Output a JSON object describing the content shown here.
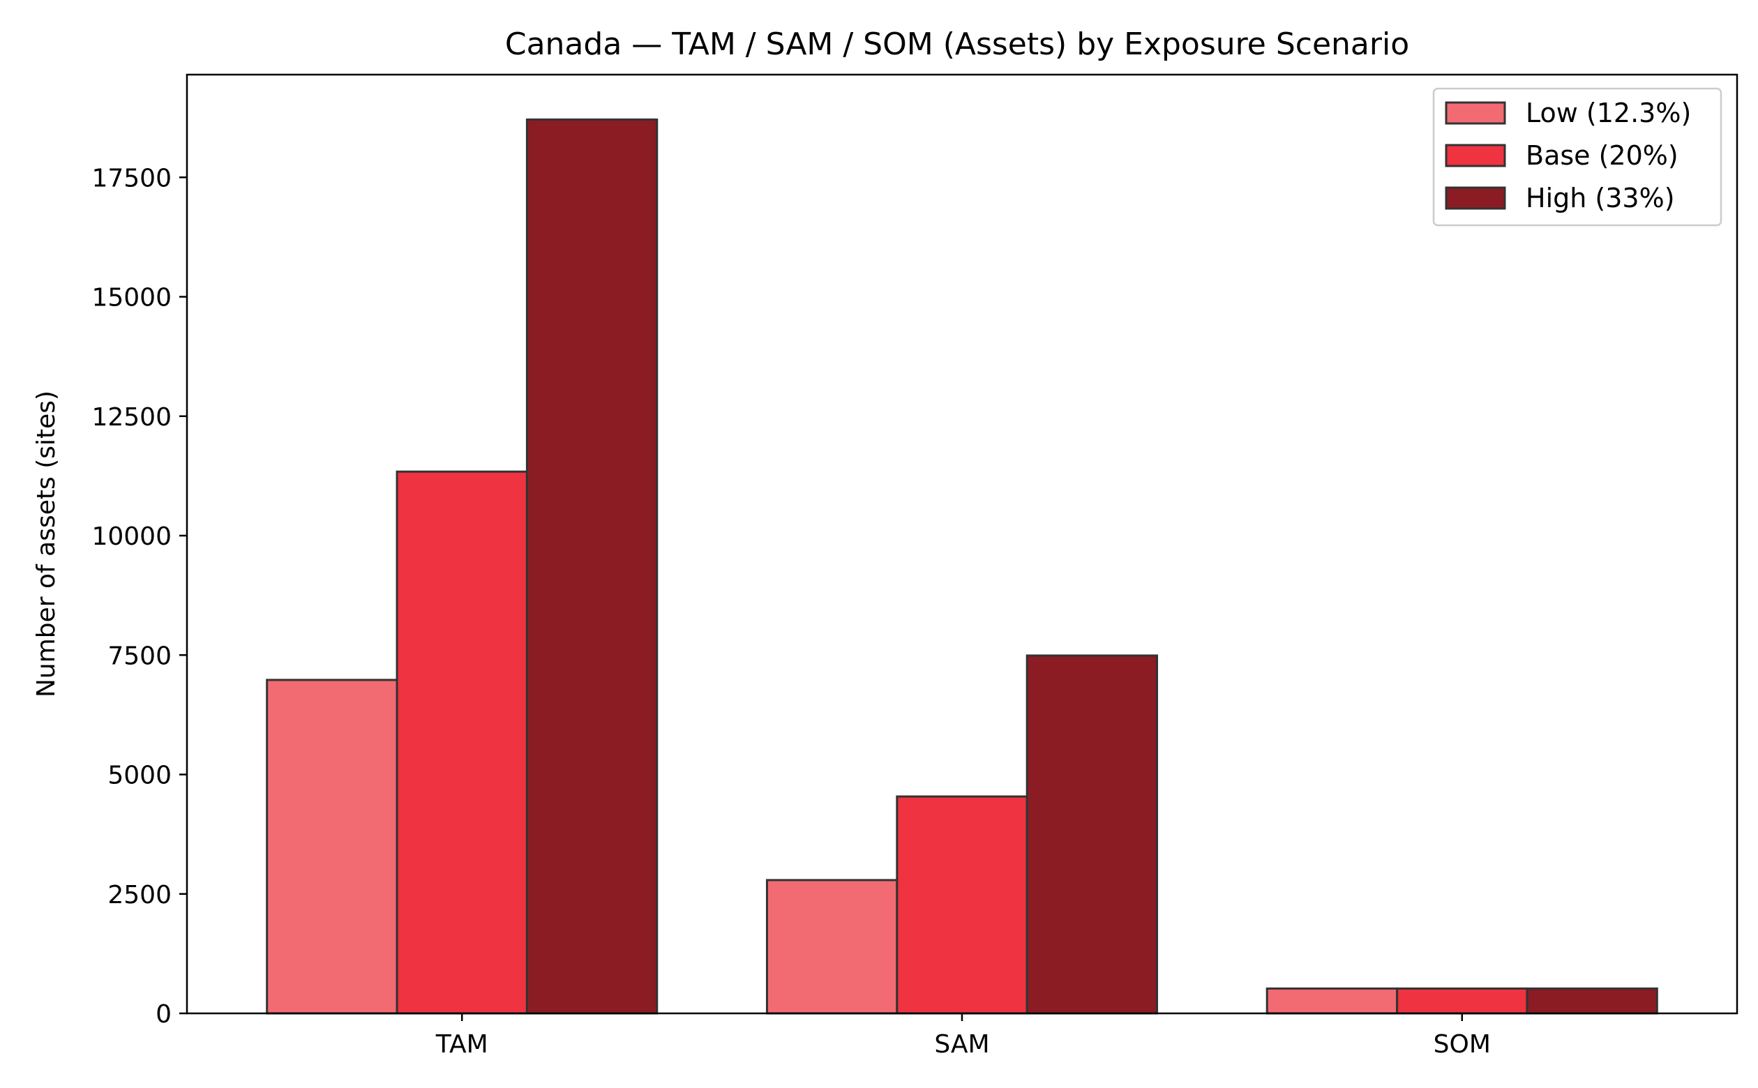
{
  "chart_data": {
    "type": "bar",
    "title": "Canada — TAM / SAM / SOM (Assets) by Exposure Scenario",
    "xlabel": "",
    "ylabel": "Number of assets (sites)",
    "categories": [
      "TAM",
      "SAM",
      "SOM"
    ],
    "series": [
      {
        "name": "Low (12.3%)",
        "color": "#f26b73",
        "values": [
          6980,
          2790,
          520
        ]
      },
      {
        "name": "Base (20%)",
        "color": "#ef3340",
        "values": [
          11340,
          4540,
          520
        ]
      },
      {
        "name": "High (33%)",
        "color": "#8b1c23",
        "values": [
          18710,
          7490,
          520
        ]
      }
    ],
    "ylim": [
      0,
      19650
    ],
    "yticks": [
      0,
      2500,
      5000,
      7500,
      10000,
      12500,
      15000,
      17500
    ],
    "grid": false,
    "legend_position": "top-right",
    "edge_color": "#333333"
  }
}
